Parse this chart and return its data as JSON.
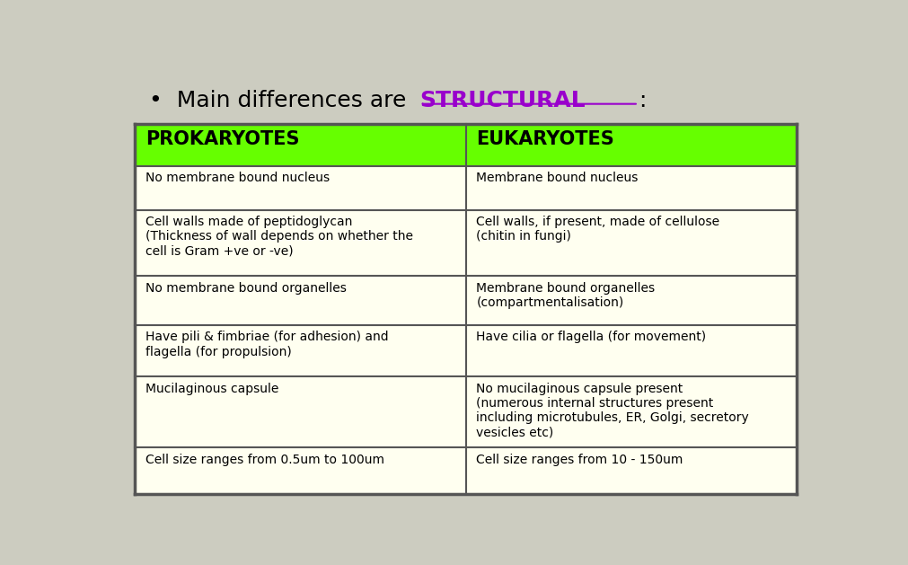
{
  "title_prefix": "Main differences are ",
  "title_highlight": "STRUCTURAL",
  "title_suffix": ":",
  "title_color": "#9900cc",
  "title_fontsize": 18,
  "header": [
    "PROKARYOTES",
    "EUKARYOTES"
  ],
  "header_bg": "#66ff00",
  "header_text_color": "#000000",
  "header_fontsize": 15,
  "rows": [
    [
      "No membrane bound nucleus",
      "Membrane bound nucleus"
    ],
    [
      "Cell walls made of peptidoglycan\n(Thickness of wall depends on whether the\ncell is Gram +ve or -ve)",
      "Cell walls, if present, made of cellulose\n(chitin in fungi)"
    ],
    [
      "No membrane bound organelles",
      "Membrane bound organelles\n(compartmentalisation)"
    ],
    [
      "Have pili & fimbriae (for adhesion) and\nflagella (for propulsion)",
      "Have cilia or flagella (for movement)"
    ],
    [
      "Mucilaginous capsule",
      "No mucilaginous capsule present\n(numerous internal structures present\nincluding microtubules, ER, Golgi, secretory\nvesicles etc)"
    ],
    [
      "Cell size ranges from 0.5um to 100um",
      "Cell size ranges from 10 - 150um"
    ]
  ],
  "table_border_color": "#555555",
  "cell_text_color": "#000000",
  "cell_fontsize": 10,
  "bg_color": "#ccccc0",
  "fig_width": 10.12,
  "fig_height": 6.29
}
